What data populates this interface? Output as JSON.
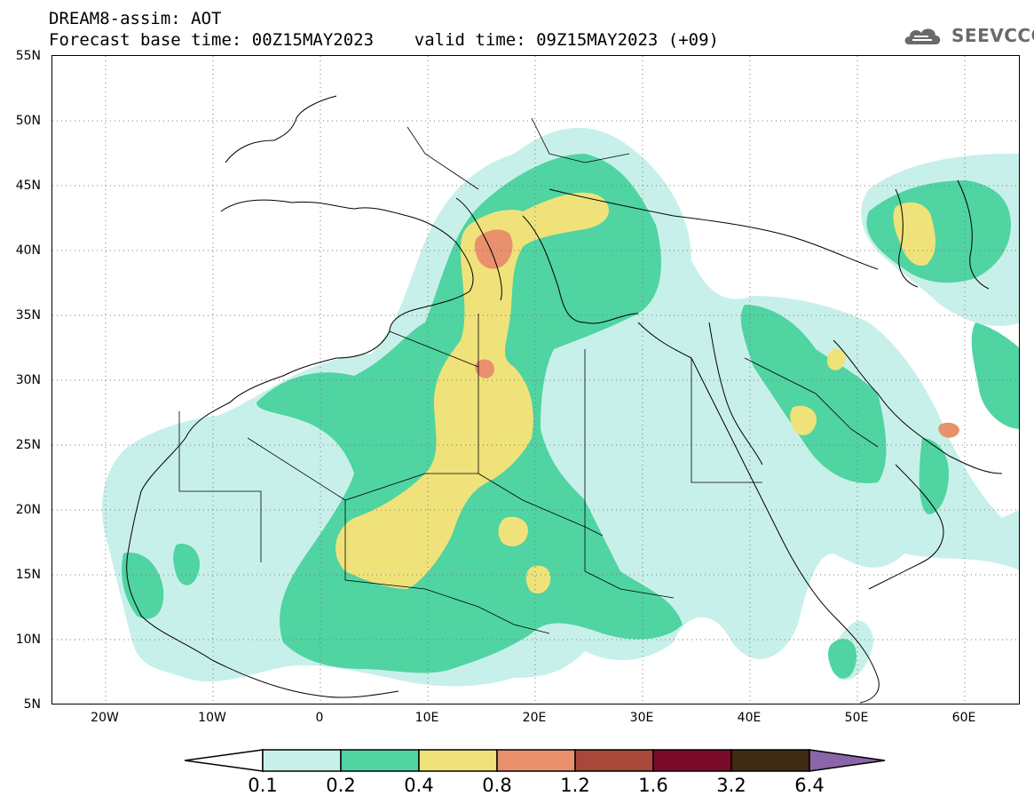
{
  "header": {
    "title_line1": "DREAM8-assim: AOT",
    "title_line2": "Forecast base time: 00Z15MAY2023    valid time: 09Z15MAY2023 (+09)"
  },
  "logo": {
    "text": "SEEVCCC",
    "icon": "cloud-logo-icon"
  },
  "map": {
    "lat_labels": [
      "55N",
      "50N",
      "45N",
      "40N",
      "35N",
      "30N",
      "25N",
      "20N",
      "15N",
      "10N",
      "5N"
    ],
    "lon_labels": [
      "20W",
      "10W",
      "0",
      "10E",
      "20E",
      "30E",
      "40E",
      "50E",
      "60E"
    ],
    "extent": {
      "lon_min": -25,
      "lon_max": 65,
      "lat_min": 5,
      "lat_max": 55
    }
  },
  "legend": {
    "labels": [
      "0.1",
      "0.2",
      "0.4",
      "0.8",
      "1.2",
      "1.6",
      "3.2",
      "6.4"
    ],
    "colors": [
      "#ffffff",
      "#c8f0ea",
      "#4fd4a2",
      "#f0e27a",
      "#e9906c",
      "#a8473a",
      "#7a0a2a",
      "#3f2a12",
      "#8a66a8"
    ]
  },
  "colors": {
    "aot_0_1": "#c8f0ea",
    "aot_0_2": "#4fd4a2",
    "aot_0_4": "#f0e27a",
    "aot_0_8": "#e9906c",
    "aot_1_2": "#a8473a"
  }
}
